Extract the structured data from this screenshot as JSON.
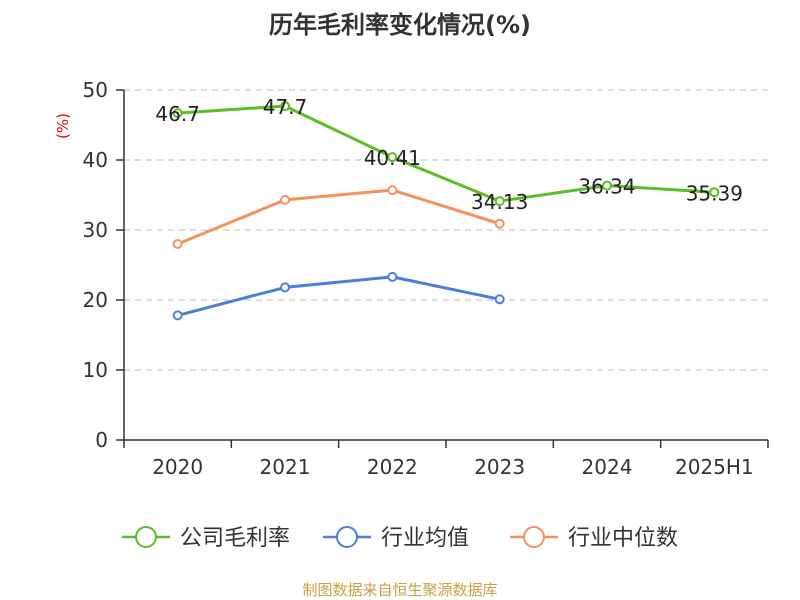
{
  "chart_data": {
    "type": "line",
    "title": "历年毛利率变化情况(%)",
    "ylabel": "(%)",
    "xlabel": "",
    "categories": [
      "2020",
      "2021",
      "2022",
      "2023",
      "2024",
      "2025H1"
    ],
    "ylim": [
      0,
      50
    ],
    "yticks": [
      0,
      10,
      20,
      30,
      40,
      50
    ],
    "grid": true,
    "legend_position": "bottom",
    "series": [
      {
        "name": "公司毛利率",
        "color": "#5cbd24",
        "values": [
          46.7,
          47.7,
          40.41,
          34.13,
          36.34,
          35.39
        ],
        "labels": [
          "46.7",
          "47.7",
          "40.41",
          "34.13",
          "36.34",
          "35.39"
        ]
      },
      {
        "name": "行业均值",
        "color": "#4a7fdc",
        "values": [
          17.8,
          21.8,
          23.3,
          20.1,
          null,
          null
        ]
      },
      {
        "name": "行业中位数",
        "color": "#f5915a",
        "values": [
          28.0,
          34.3,
          35.7,
          30.9,
          null,
          null
        ]
      }
    ]
  },
  "source": "制图数据来自恒生聚源数据库"
}
